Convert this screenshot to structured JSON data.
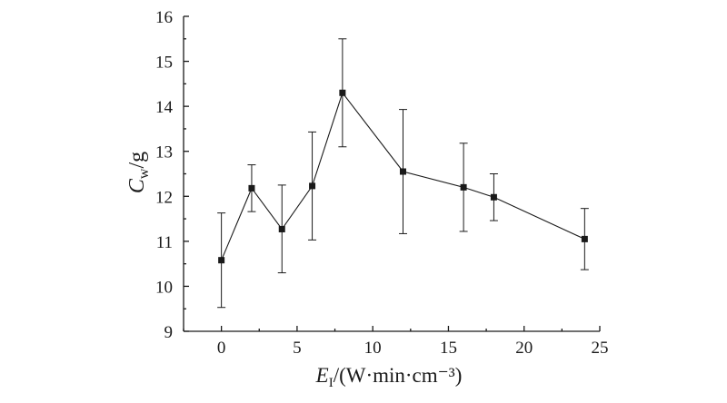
{
  "chart_data": {
    "type": "scatter",
    "title": "",
    "xlabel": {
      "main": "E",
      "sub": "I",
      "unit": "/(W·min·cm⁻³)"
    },
    "ylabel": {
      "main": "C",
      "sub": "w",
      "unit": "/g"
    },
    "xlim": [
      -2.5,
      25
    ],
    "ylim": [
      9,
      16
    ],
    "xticks": [
      0,
      5,
      10,
      15,
      20,
      25
    ],
    "yticks": [
      9,
      10,
      11,
      12,
      13,
      14,
      15,
      16
    ],
    "grid": false,
    "legend": "none",
    "marker": "square",
    "line": "solid",
    "color": "#1a1a1a",
    "series": [
      {
        "x": [
          0,
          2,
          4,
          6,
          8,
          12,
          16,
          18,
          24
        ],
        "y": [
          10.58,
          12.18,
          11.27,
          12.23,
          14.3,
          12.55,
          12.2,
          11.98,
          11.05
        ],
        "err_low": [
          9.53,
          11.66,
          10.3,
          11.03,
          13.1,
          11.17,
          11.22,
          11.46,
          10.37
        ],
        "err_high": [
          11.63,
          12.7,
          12.25,
          13.43,
          15.5,
          13.93,
          13.18,
          12.5,
          11.73
        ]
      }
    ]
  }
}
